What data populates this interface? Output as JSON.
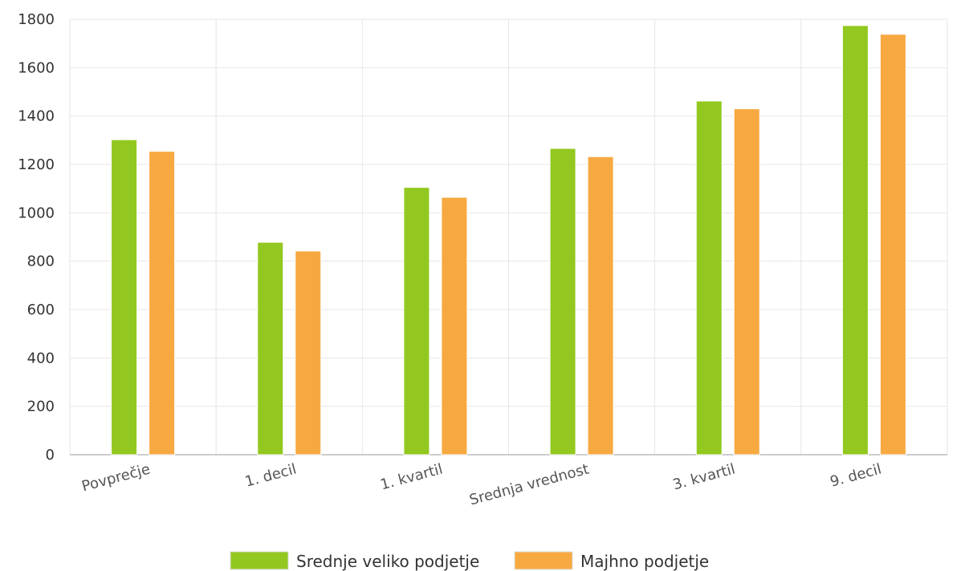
{
  "chart_data": {
    "type": "bar",
    "title": "",
    "xlabel": "",
    "ylabel": "",
    "categories": [
      "Povprečje",
      "1. decil",
      "1. kvartil",
      "Srednja vrednost",
      "3. kvartil",
      "9. decil"
    ],
    "series": [
      {
        "name": "Srednje veliko podjetje",
        "color": "#92c81f",
        "values": [
          1302,
          878,
          1105,
          1266,
          1462,
          1774
        ]
      },
      {
        "name": "Majhno podjetje",
        "color": "#f7a941",
        "values": [
          1254,
          842,
          1064,
          1232,
          1430,
          1738
        ]
      }
    ],
    "ylim": [
      0,
      1800
    ],
    "yticks": [
      0,
      200,
      400,
      600,
      800,
      1000,
      1200,
      1400,
      1600,
      1800
    ],
    "grid": true,
    "legend_position": "bottom-center"
  }
}
